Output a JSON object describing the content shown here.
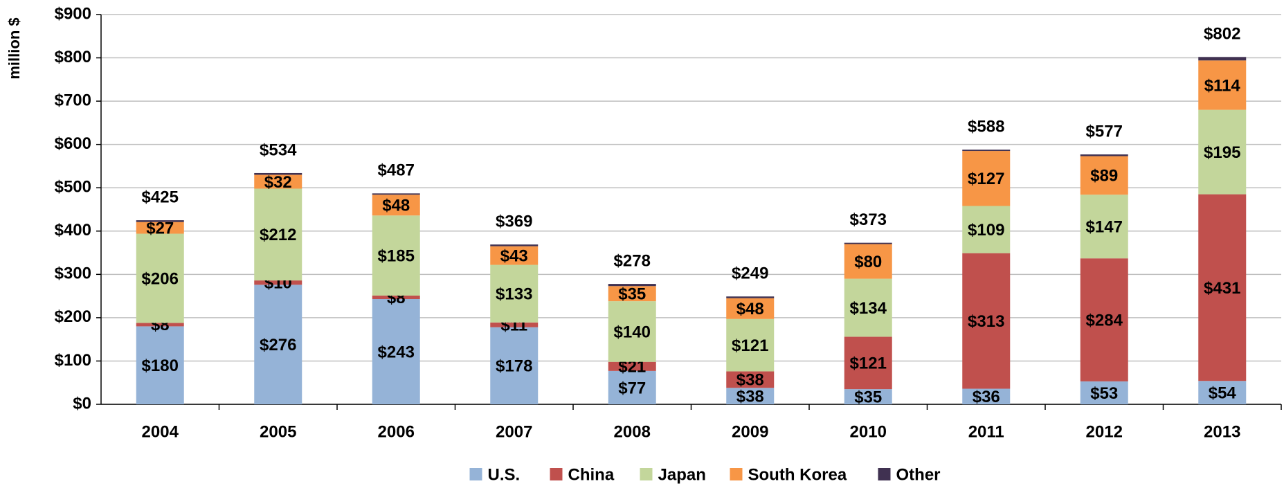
{
  "chart_data": {
    "type": "stacked_bar",
    "y_label": "million $",
    "categories": [
      "2004",
      "2005",
      "2006",
      "2007",
      "2008",
      "2009",
      "2010",
      "2011",
      "2012",
      "2013"
    ],
    "series": [
      {
        "name": "U.S.",
        "color": "#95b3d7",
        "values": [
          180,
          276,
          243,
          178,
          77,
          38,
          35,
          36,
          53,
          54
        ],
        "value_labels": [
          "$180",
          "$276",
          "$243",
          "$178",
          "$77",
          "$38",
          "$35",
          "$36",
          "$53",
          "$54"
        ]
      },
      {
        "name": "China",
        "color": "#c0504d",
        "values": [
          8,
          10,
          8,
          11,
          21,
          38,
          121,
          313,
          284,
          431
        ],
        "value_labels": [
          "$8",
          "$10",
          "$8",
          "$11",
          "$21",
          "$38",
          "$121",
          "$313",
          "$284",
          "$431"
        ]
      },
      {
        "name": "Japan",
        "color": "#c3d69b",
        "values": [
          206,
          212,
          185,
          133,
          140,
          121,
          134,
          109,
          147,
          195
        ],
        "value_labels": [
          "$206",
          "$212",
          "$185",
          "$133",
          "$140",
          "$121",
          "$134",
          "$109",
          "$147",
          "$195"
        ]
      },
      {
        "name": "South Korea",
        "color": "#f79646",
        "values": [
          27,
          32,
          48,
          43,
          35,
          48,
          80,
          127,
          89,
          114
        ],
        "value_labels": [
          "$27",
          "$32",
          "$48",
          "$43",
          "$35",
          "$48",
          "$80",
          "$127",
          "$89",
          "$114"
        ]
      },
      {
        "name": "Other",
        "color": "#403151",
        "values": [
          4,
          4,
          3,
          4,
          5,
          4,
          3,
          3,
          4,
          8
        ]
      }
    ],
    "totals": [
      425,
      534,
      487,
      369,
      278,
      249,
      373,
      588,
      577,
      802
    ],
    "total_labels": [
      "$425",
      "$534",
      "$487",
      "$369",
      "$278",
      "$249",
      "$373",
      "$588",
      "$577",
      "$802"
    ],
    "total_color": "#c00000",
    "ylim": [
      0,
      900
    ],
    "yticks": [
      {
        "value": 0,
        "label": "$0"
      },
      {
        "value": 100,
        "label": "$100"
      },
      {
        "value": 200,
        "label": "$200"
      },
      {
        "value": 300,
        "label": "$300"
      },
      {
        "value": 400,
        "label": "$400"
      },
      {
        "value": 500,
        "label": "$500"
      },
      {
        "value": 600,
        "label": "$600"
      },
      {
        "value": 700,
        "label": "$700"
      },
      {
        "value": 800,
        "label": "$800"
      },
      {
        "value": 900,
        "label": "$900"
      }
    ],
    "grid": true,
    "legend": "bottom"
  }
}
